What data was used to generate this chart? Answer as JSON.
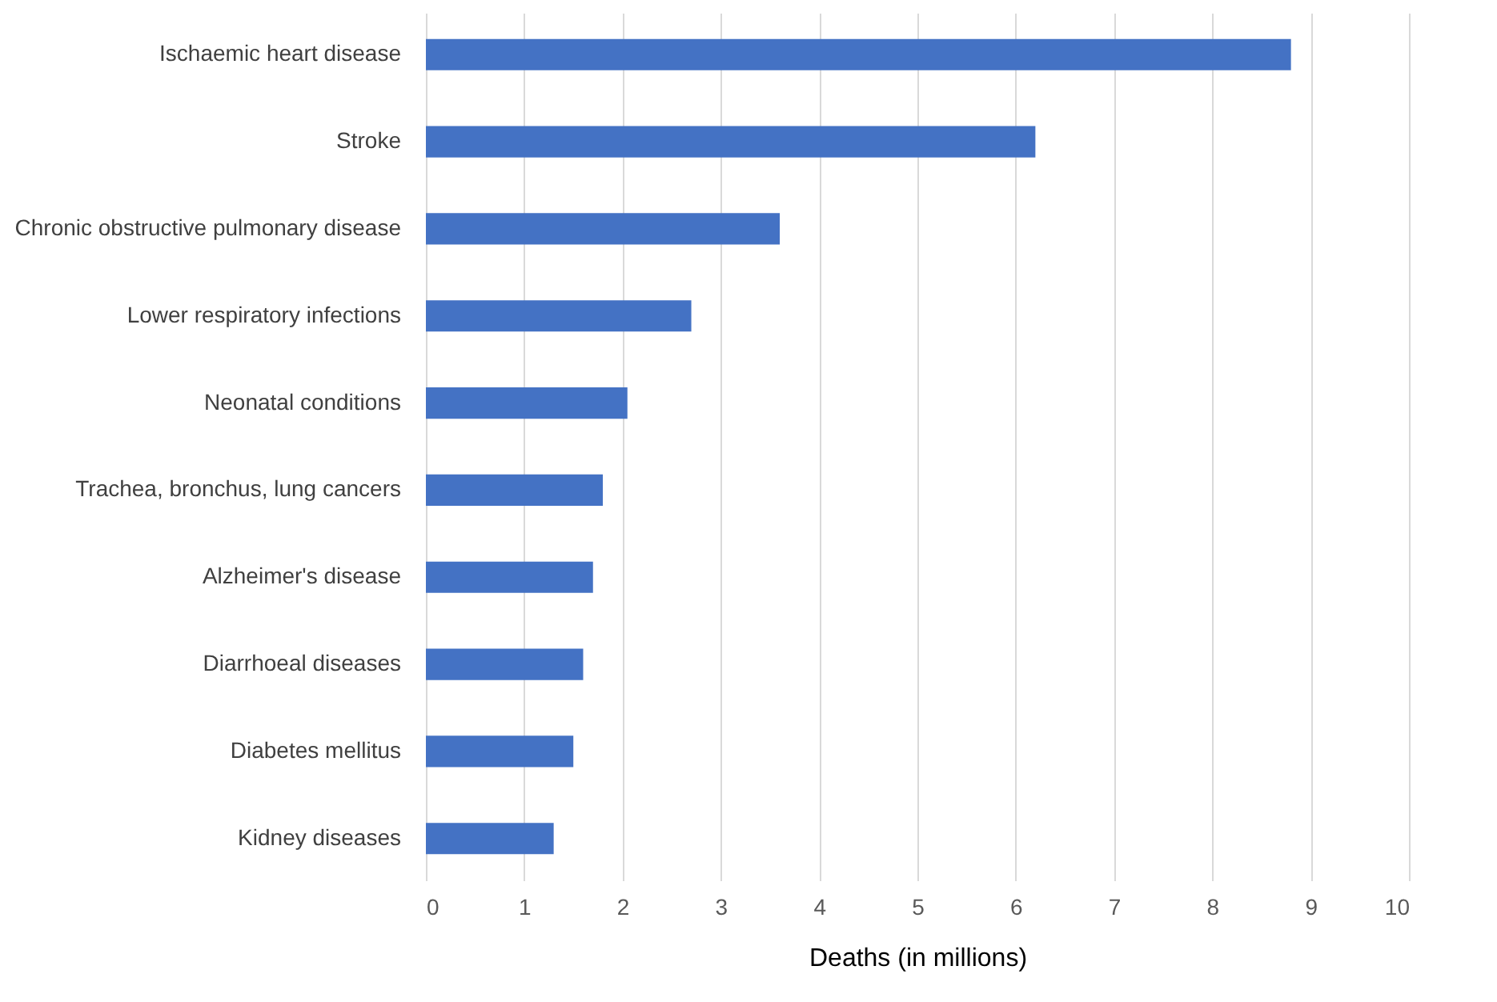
{
  "chart_data": {
    "type": "bar",
    "orientation": "horizontal",
    "xlabel": "Deaths (in millions)",
    "categories": [
      "Ischaemic heart disease",
      "Stroke",
      "Chronic obstructive pulmonary disease",
      "Lower respiratory infections",
      "Neonatal conditions",
      "Trachea, bronchus, lung cancers",
      "Alzheimer's disease",
      "Diarrhoeal diseases",
      "Diabetes mellitus",
      "Kidney diseases"
    ],
    "values": [
      8.8,
      6.2,
      3.6,
      2.7,
      2.05,
      1.8,
      1.7,
      1.6,
      1.5,
      1.3
    ],
    "color": "#4472c4",
    "xlim": [
      0,
      10
    ],
    "xticks": [
      0,
      1,
      2,
      3,
      4,
      5,
      6,
      7,
      8,
      9,
      10
    ],
    "grid": "x"
  }
}
